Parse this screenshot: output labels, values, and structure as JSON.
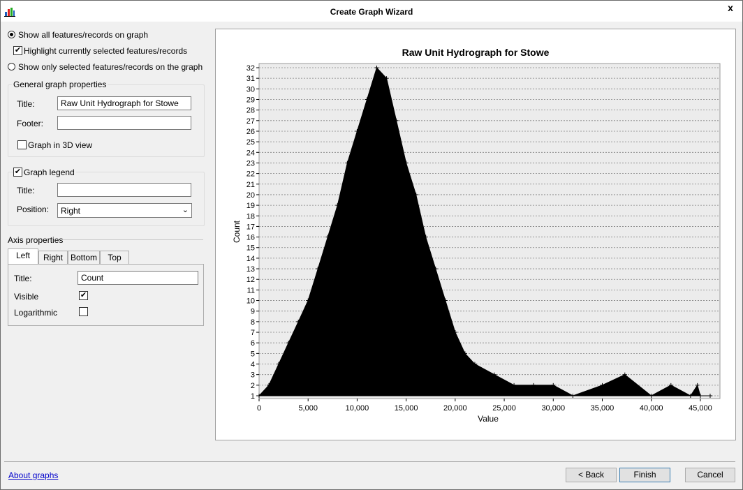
{
  "window": {
    "title": "Create Graph Wizard",
    "close_glyph": "x"
  },
  "options": {
    "show_all": "Show all features/records on graph",
    "highlight_selected": "Highlight currently selected features/records",
    "show_only_selected": "Show only selected features/records on the graph"
  },
  "general": {
    "group_label": "General graph properties",
    "title_label": "Title:",
    "title_value": "Raw Unit Hydrograph for Stowe",
    "footer_label": "Footer:",
    "footer_value": "",
    "graph3d_label": "Graph in 3D view"
  },
  "legend": {
    "group_label": "Graph legend",
    "title_label": "Title:",
    "title_value": "",
    "position_label": "Position:",
    "position_value": "Right"
  },
  "axis": {
    "section_label": "Axis properties",
    "tabs": [
      "Left",
      "Right",
      "Bottom",
      "Top"
    ],
    "title_label": "Title:",
    "title_value": "Count",
    "visible_label": "Visible",
    "log_label": "Logarithmic"
  },
  "footer": {
    "about_link": "About graphs",
    "back_label": "< Back",
    "finish_label": "Finish",
    "cancel_label": "Cancel"
  },
  "chart_data": {
    "type": "line",
    "title": "Raw Unit Hydrograph for Stowe",
    "xlabel": "Value",
    "ylabel": "Count",
    "xlim": [
      0,
      47000
    ],
    "ylim": [
      1,
      32
    ],
    "x_ticks": [
      "0",
      "5,000",
      "10,000",
      "15,000",
      "20,000",
      "25,000",
      "30,000",
      "35,000",
      "40,000",
      "45,000"
    ],
    "y_ticks": [
      "1",
      "2",
      "3",
      "4",
      "5",
      "6",
      "7",
      "8",
      "9",
      "10",
      "11",
      "12",
      "13",
      "14",
      "15",
      "16",
      "17",
      "18",
      "19",
      "20",
      "21",
      "22",
      "23",
      "24",
      "25",
      "26",
      "27",
      "28",
      "29",
      "30",
      "31",
      "32"
    ],
    "grid": true,
    "series": [
      {
        "x": [
          0,
          1000,
          2000,
          3000,
          4000,
          5000,
          6000,
          7000,
          8000,
          9000,
          10000,
          11000,
          12000,
          13000,
          14000,
          15000,
          16000,
          17000,
          18000,
          19000,
          20000,
          21000,
          22000,
          24000,
          26000,
          28000,
          30000,
          32000,
          35000,
          37300,
          40000,
          42000,
          44000,
          44700,
          45000,
          46000
        ],
        "y": [
          1,
          2,
          4,
          6,
          8,
          10,
          13,
          16,
          19,
          23,
          26,
          29,
          32,
          31,
          27,
          23,
          20,
          16,
          13,
          10,
          7,
          5,
          4,
          3,
          2,
          2,
          2,
          1,
          2,
          3,
          1,
          2,
          1,
          2,
          1,
          1
        ]
      }
    ]
  }
}
